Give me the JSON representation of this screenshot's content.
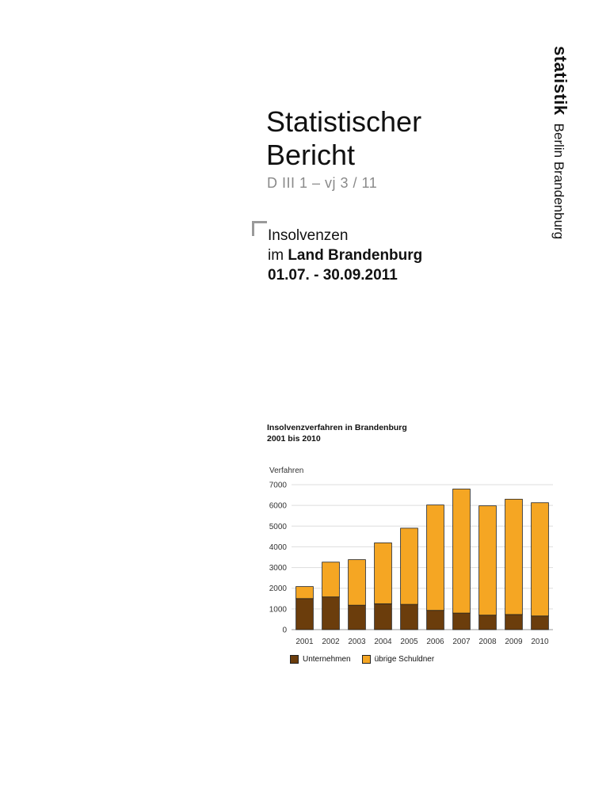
{
  "brand": {
    "name": "statistik",
    "region": "Berlin Brandenburg"
  },
  "report": {
    "title_line1": "Statistischer",
    "title_line2": "Bericht",
    "code": "D III 1 – vj 3 / 11"
  },
  "subject": {
    "line1": "Insolvenzen",
    "line2_prefix": "im ",
    "line2_bold": "Land Brandenburg",
    "line3": "01.07. - 30.09.2011"
  },
  "chart_title": {
    "line1": "Insolvenzverfahren in Brandenburg",
    "line2": "2001 bis 2010"
  },
  "colors": {
    "unternehmen": "#6b3d0c",
    "uebrige": "#f5a623",
    "grid": "#dddddd"
  },
  "chart_data": {
    "type": "bar",
    "stacked": true,
    "categories": [
      "2001",
      "2002",
      "2003",
      "2004",
      "2005",
      "2006",
      "2007",
      "2008",
      "2009",
      "2010"
    ],
    "series": [
      {
        "name": "Unternehmen",
        "values": [
          1500,
          1580,
          1180,
          1250,
          1220,
          930,
          800,
          700,
          730,
          660
        ]
      },
      {
        "name": "übrige Schuldner",
        "values": [
          580,
          1680,
          2200,
          2940,
          3680,
          5090,
          5990,
          5280,
          5570,
          5470
        ]
      }
    ],
    "ylabel": "Verfahren",
    "ylim": [
      0,
      7000
    ],
    "yticks": [
      0,
      1000,
      2000,
      3000,
      4000,
      5000,
      6000,
      7000
    ],
    "grid": true,
    "legend_position": "bottom"
  }
}
